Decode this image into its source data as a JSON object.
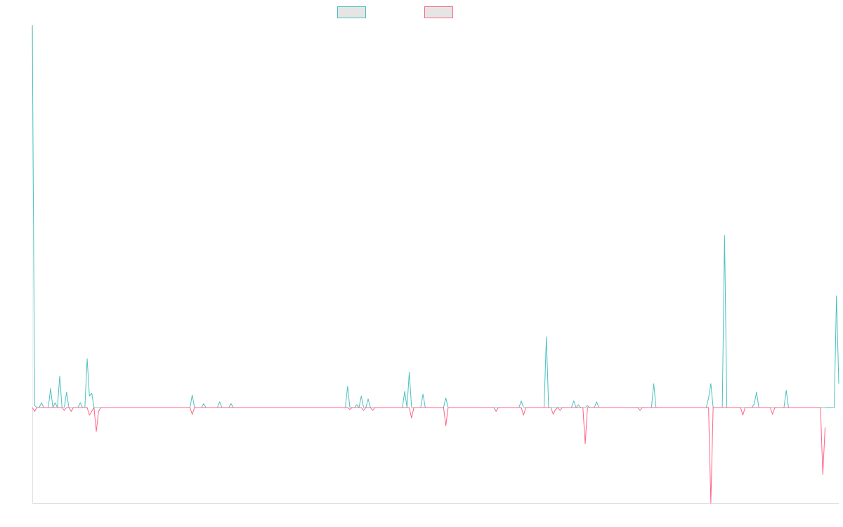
{
  "chart_data": {
    "type": "line",
    "title": "",
    "xlabel": "",
    "ylabel": "",
    "ylim": [
      -1,
      4
    ],
    "grid": false,
    "legend": "top-center",
    "zero_line": true,
    "series": [
      {
        "name": "",
        "color": "#4bc0c0",
        "fill": "#e5e5e5",
        "values": [
          4.0,
          0.02,
          0.0,
          0.0,
          0.05,
          0.0,
          0.0,
          0.0,
          0.2,
          0.0,
          0.05,
          0.0,
          0.33,
          0.0,
          0.0,
          0.16,
          0.0,
          0.0,
          0.0,
          0.0,
          0.0,
          0.05,
          0.0,
          0.0,
          0.51,
          0.12,
          0.15,
          0.0,
          0.0,
          0.0,
          0.0,
          0.0,
          0.0,
          0.0,
          0.0,
          0.0,
          0.0,
          0.0,
          0.0,
          0.0,
          0.0,
          0.0,
          0.0,
          0.0,
          0.0,
          0.0,
          0.0,
          0.0,
          0.0,
          0.0,
          0.0,
          0.0,
          0.0,
          0.0,
          0.0,
          0.0,
          0.0,
          0.0,
          0.0,
          0.0,
          0.0,
          0.0,
          0.0,
          0.0,
          0.0,
          0.0,
          0.0,
          0.0,
          0.0,
          0.0,
          0.13,
          0.0,
          0.0,
          0.0,
          0.0,
          0.04,
          0.0,
          0.0,
          0.0,
          0.0,
          0.0,
          0.0,
          0.06,
          0.0,
          0.0,
          0.0,
          0.0,
          0.04,
          0.0,
          0.0,
          0.0,
          0.0,
          0.0,
          0.0,
          0.0,
          0.0,
          0.0,
          0.0,
          0.0,
          0.0,
          0.0,
          0.0,
          0.0,
          0.0,
          0.0,
          0.0,
          0.0,
          0.0,
          0.0,
          0.0,
          0.0,
          0.0,
          0.0,
          0.0,
          0.0,
          0.0,
          0.0,
          0.0,
          0.0,
          0.0,
          0.0,
          0.0,
          0.0,
          0.0,
          0.0,
          0.0,
          0.0,
          0.0,
          0.0,
          0.0,
          0.0,
          0.0,
          0.0,
          0.0,
          0.0,
          0.0,
          0.0,
          0.0,
          0.22,
          0.0,
          0.0,
          0.0,
          0.03,
          0.0,
          0.12,
          0.0,
          0.0,
          0.09,
          0.0,
          0.0,
          0.0,
          0.0,
          0.0,
          0.0,
          0.0,
          0.0,
          0.0,
          0.0,
          0.0,
          0.0,
          0.0,
          0.0,
          0.0,
          0.17,
          0.0,
          0.37,
          0.0,
          0.0,
          0.0,
          0.0,
          0.0,
          0.14,
          0.0,
          0.0,
          0.0,
          0.0,
          0.0,
          0.0,
          0.0,
          0.0,
          0.0,
          0.1,
          0.0,
          0.0,
          0.0,
          0.0,
          0.0,
          0.0,
          0.0,
          0.0,
          0.0,
          0.0,
          0.0,
          0.0,
          0.0,
          0.0,
          0.0,
          0.0,
          0.0,
          0.0,
          0.0,
          0.0,
          0.0,
          0.0,
          0.0,
          0.0,
          0.0,
          0.0,
          0.0,
          0.0,
          0.0,
          0.0,
          0.0,
          0.0,
          0.07,
          0.0,
          0.0,
          0.0,
          0.0,
          0.0,
          0.0,
          0.0,
          0.0,
          0.0,
          0.0,
          0.74,
          0.0,
          0.0,
          0.0,
          0.0,
          0.0,
          0.0,
          0.0,
          0.0,
          0.0,
          0.0,
          0.0,
          0.07,
          0.0,
          0.03,
          0.0,
          0.0,
          0.0,
          0.02,
          0.0,
          0.0,
          0.0,
          0.06,
          0.0,
          0.0,
          0.0,
          0.0,
          0.0,
          0.0,
          0.0,
          0.0,
          0.0,
          0.0,
          0.0,
          0.0,
          0.0,
          0.0,
          0.0,
          0.0,
          0.0,
          0.0,
          0.0,
          0.0,
          0.0,
          0.0,
          0.0,
          0.0,
          0.25,
          0.0,
          0.0,
          0.0,
          0.0,
          0.0,
          0.0,
          0.0,
          0.0,
          0.0,
          0.0,
          0.0,
          0.0,
          0.0,
          0.0,
          0.0,
          0.0,
          0.0,
          0.0,
          0.0,
          0.0,
          0.0,
          0.0,
          0.0,
          0.1,
          0.25,
          0.0,
          0.0,
          0.0,
          0.0,
          0.0,
          1.8,
          0.0,
          0.0,
          0.0,
          0.0,
          0.0,
          0.0,
          0.0,
          0.0,
          0.0,
          0.0,
          0.0,
          0.0,
          0.04,
          0.16,
          0.0,
          0.0,
          0.0,
          0.0,
          0.0,
          0.0,
          0.0,
          0.0,
          0.0,
          0.0,
          0.0,
          0.0,
          0.18,
          0.0,
          0.0,
          0.0,
          0.0,
          0.0,
          0.0,
          0.0,
          0.0,
          0.0,
          0.0,
          0.0,
          0.0,
          0.0,
          0.0,
          0.0,
          0.0,
          0.0,
          0.0,
          0.0,
          0.0,
          0.0,
          1.17,
          0.25
        ]
      },
      {
        "name": "",
        "color": "#ff6384",
        "fill": "#e5e5e5",
        "values": [
          0.0,
          -0.04,
          0.0,
          0.0,
          0.0,
          0.0,
          0.0,
          0.0,
          0.0,
          0.0,
          0.0,
          0.0,
          0.0,
          0.0,
          -0.03,
          0.0,
          0.0,
          -0.04,
          0.0,
          0.0,
          0.0,
          0.0,
          0.0,
          0.0,
          0.0,
          -0.08,
          -0.04,
          0.0,
          -0.25,
          -0.04,
          0.0,
          0.0,
          0.0,
          0.0,
          0.0,
          0.0,
          0.0,
          0.0,
          0.0,
          0.0,
          0.0,
          0.0,
          0.0,
          0.0,
          0.0,
          0.0,
          0.0,
          0.0,
          0.0,
          0.0,
          0.0,
          0.0,
          0.0,
          0.0,
          0.0,
          0.0,
          0.0,
          0.0,
          0.0,
          0.0,
          0.0,
          0.0,
          0.0,
          0.0,
          0.0,
          0.0,
          0.0,
          0.0,
          0.0,
          0.0,
          -0.07,
          0.0,
          0.0,
          0.0,
          0.0,
          0.0,
          0.0,
          0.0,
          0.0,
          0.0,
          0.0,
          0.0,
          0.0,
          0.0,
          0.0,
          0.0,
          0.0,
          0.0,
          0.0,
          0.0,
          0.0,
          0.0,
          0.0,
          0.0,
          0.0,
          0.0,
          0.0,
          0.0,
          0.0,
          0.0,
          0.0,
          0.0,
          0.0,
          0.0,
          0.0,
          0.0,
          0.0,
          0.0,
          0.0,
          0.0,
          0.0,
          0.0,
          0.0,
          0.0,
          0.0,
          0.0,
          0.0,
          0.0,
          0.0,
          0.0,
          0.0,
          0.0,
          0.0,
          0.0,
          0.0,
          0.0,
          0.0,
          0.0,
          0.0,
          0.0,
          0.0,
          0.0,
          0.0,
          0.0,
          0.0,
          0.0,
          0.0,
          0.0,
          0.0,
          -0.02,
          0.0,
          0.0,
          0.0,
          0.0,
          0.0,
          -0.03,
          0.0,
          0.0,
          0.0,
          -0.03,
          0.0,
          0.0,
          0.0,
          0.0,
          0.0,
          0.0,
          0.0,
          0.0,
          0.0,
          0.0,
          0.0,
          0.0,
          0.0,
          0.0,
          0.0,
          0.0,
          -0.11,
          0.0,
          0.0,
          0.0,
          0.0,
          0.0,
          0.0,
          0.0,
          0.0,
          0.0,
          0.0,
          0.0,
          0.0,
          0.0,
          0.0,
          -0.19,
          0.0,
          0.0,
          0.0,
          0.0,
          0.0,
          0.0,
          0.0,
          0.0,
          0.0,
          0.0,
          0.0,
          0.0,
          0.0,
          0.0,
          0.0,
          0.0,
          0.0,
          0.0,
          0.0,
          0.0,
          0.0,
          -0.04,
          0.0,
          0.0,
          0.0,
          0.0,
          0.0,
          0.0,
          0.0,
          0.0,
          0.0,
          0.0,
          0.0,
          -0.08,
          0.0,
          0.0,
          0.0,
          0.0,
          0.0,
          0.0,
          0.0,
          0.0,
          0.0,
          0.0,
          0.0,
          0.0,
          -0.07,
          -0.02,
          0.0,
          -0.03,
          0.0,
          0.0,
          0.0,
          0.0,
          0.0,
          0.0,
          0.0,
          0.0,
          0.0,
          0.0,
          -0.38,
          0.0,
          0.0,
          0.0,
          0.0,
          0.0,
          0.0,
          0.0,
          0.0,
          0.0,
          0.0,
          0.0,
          0.0,
          0.0,
          0.0,
          0.0,
          0.0,
          0.0,
          0.0,
          0.0,
          0.0,
          0.0,
          0.0,
          0.0,
          -0.03,
          0.0,
          0.0,
          0.0,
          0.0,
          0.0,
          0.0,
          0.0,
          0.0,
          0.0,
          0.0,
          0.0,
          0.0,
          0.0,
          0.0,
          0.0,
          0.0,
          0.0,
          0.0,
          0.0,
          0.0,
          0.0,
          0.0,
          0.0,
          0.0,
          0.0,
          0.0,
          0.0,
          0.0,
          0.0,
          0.0,
          -1.0,
          0.0,
          0.0,
          0.0,
          0.0,
          0.0,
          0.0,
          0.0,
          0.0,
          0.0,
          0.0,
          0.0,
          0.0,
          0.0,
          -0.08,
          0.0,
          0.0,
          0.0,
          0.0,
          0.0,
          0.0,
          0.0,
          0.0,
          0.0,
          0.0,
          0.0,
          0.0,
          -0.07,
          0.0,
          0.0,
          0.0,
          0.0,
          0.0,
          0.0,
          0.0,
          0.0,
          0.0,
          0.0,
          0.0,
          0.0,
          0.0,
          0.0,
          0.0,
          0.0,
          0.0,
          0.0,
          0.0,
          0.0,
          0.0,
          -0.7,
          -0.21
        ]
      }
    ]
  }
}
